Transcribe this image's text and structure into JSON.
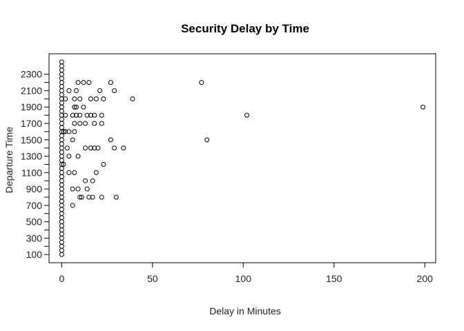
{
  "chart_data": {
    "type": "scatter",
    "title": "Security Delay by Time",
    "xlabel": "Delay in Minutes",
    "ylabel": "Departure Time",
    "xlim": [
      -7,
      206
    ],
    "ylim": [
      0,
      2550
    ],
    "x_ticks": [
      0,
      50,
      100,
      150,
      200
    ],
    "y_ticks": [
      100,
      200,
      300,
      400,
      500,
      600,
      700,
      800,
      900,
      1000,
      1100,
      1200,
      1300,
      1400,
      1500,
      1600,
      1700,
      1800,
      1900,
      2000,
      2100,
      2200,
      2300
    ],
    "y_tick_labels": [
      "100",
      "",
      "300",
      "",
      "500",
      "",
      "700",
      "",
      "900",
      "",
      "1100",
      "",
      "1300",
      "",
      "1500",
      "",
      "1700",
      "",
      "1900",
      "",
      "2100",
      "",
      "2300"
    ],
    "zero_points": [
      100,
      150,
      200,
      250,
      300,
      350,
      400,
      450,
      500,
      550,
      600,
      650,
      700,
      750,
      800,
      850,
      900,
      950,
      1000,
      1050,
      1100,
      1150,
      1200,
      1250,
      1300,
      1350,
      1400,
      1450,
      1500,
      1550,
      1600,
      1650,
      1700,
      1750,
      1800,
      1850,
      1900,
      1950,
      2000,
      2050,
      2100,
      2150,
      2200,
      2250,
      2300,
      2350,
      2400,
      2450
    ],
    "points": [
      {
        "x": 77,
        "y": 2200
      },
      {
        "x": 9,
        "y": 2200
      },
      {
        "x": 12,
        "y": 2200
      },
      {
        "x": 15,
        "y": 2200
      },
      {
        "x": 27,
        "y": 2200
      },
      {
        "x": 4,
        "y": 2100
      },
      {
        "x": 8,
        "y": 2100
      },
      {
        "x": 21,
        "y": 2100
      },
      {
        "x": 29,
        "y": 2100
      },
      {
        "x": 2,
        "y": 2000
      },
      {
        "x": 7,
        "y": 2000
      },
      {
        "x": 10,
        "y": 2000
      },
      {
        "x": 16,
        "y": 2000
      },
      {
        "x": 19,
        "y": 2000
      },
      {
        "x": 23,
        "y": 2000
      },
      {
        "x": 39,
        "y": 2000
      },
      {
        "x": 7,
        "y": 1900
      },
      {
        "x": 8,
        "y": 1900
      },
      {
        "x": 12,
        "y": 1900
      },
      {
        "x": 199,
        "y": 1900
      },
      {
        "x": 2,
        "y": 1800
      },
      {
        "x": 6,
        "y": 1800
      },
      {
        "x": 8,
        "y": 1800
      },
      {
        "x": 10,
        "y": 1800
      },
      {
        "x": 14,
        "y": 1800
      },
      {
        "x": 16,
        "y": 1800
      },
      {
        "x": 18,
        "y": 1800
      },
      {
        "x": 22,
        "y": 1800
      },
      {
        "x": 102,
        "y": 1800
      },
      {
        "x": 7,
        "y": 1700
      },
      {
        "x": 10,
        "y": 1700
      },
      {
        "x": 13,
        "y": 1700
      },
      {
        "x": 18,
        "y": 1700
      },
      {
        "x": 22,
        "y": 1700
      },
      {
        "x": 1,
        "y": 1600
      },
      {
        "x": 2,
        "y": 1600
      },
      {
        "x": 4,
        "y": 1600
      },
      {
        "x": 7,
        "y": 1600
      },
      {
        "x": 6,
        "y": 1500
      },
      {
        "x": 27,
        "y": 1500
      },
      {
        "x": 80,
        "y": 1500
      },
      {
        "x": 3,
        "y": 1400
      },
      {
        "x": 13,
        "y": 1400
      },
      {
        "x": 16,
        "y": 1400
      },
      {
        "x": 18,
        "y": 1400
      },
      {
        "x": 20,
        "y": 1400
      },
      {
        "x": 29,
        "y": 1400
      },
      {
        "x": 34,
        "y": 1400
      },
      {
        "x": 4,
        "y": 1300
      },
      {
        "x": 9,
        "y": 1300
      },
      {
        "x": 1,
        "y": 1200
      },
      {
        "x": 23,
        "y": 1200
      },
      {
        "x": 4,
        "y": 1100
      },
      {
        "x": 7,
        "y": 1100
      },
      {
        "x": 19,
        "y": 1100
      },
      {
        "x": 13,
        "y": 1000
      },
      {
        "x": 17,
        "y": 1000
      },
      {
        "x": 6,
        "y": 900
      },
      {
        "x": 9,
        "y": 900
      },
      {
        "x": 14,
        "y": 900
      },
      {
        "x": 10,
        "y": 800
      },
      {
        "x": 11,
        "y": 800
      },
      {
        "x": 15,
        "y": 800
      },
      {
        "x": 17,
        "y": 800
      },
      {
        "x": 22,
        "y": 800
      },
      {
        "x": 30,
        "y": 800
      },
      {
        "x": 6,
        "y": 700
      }
    ]
  }
}
